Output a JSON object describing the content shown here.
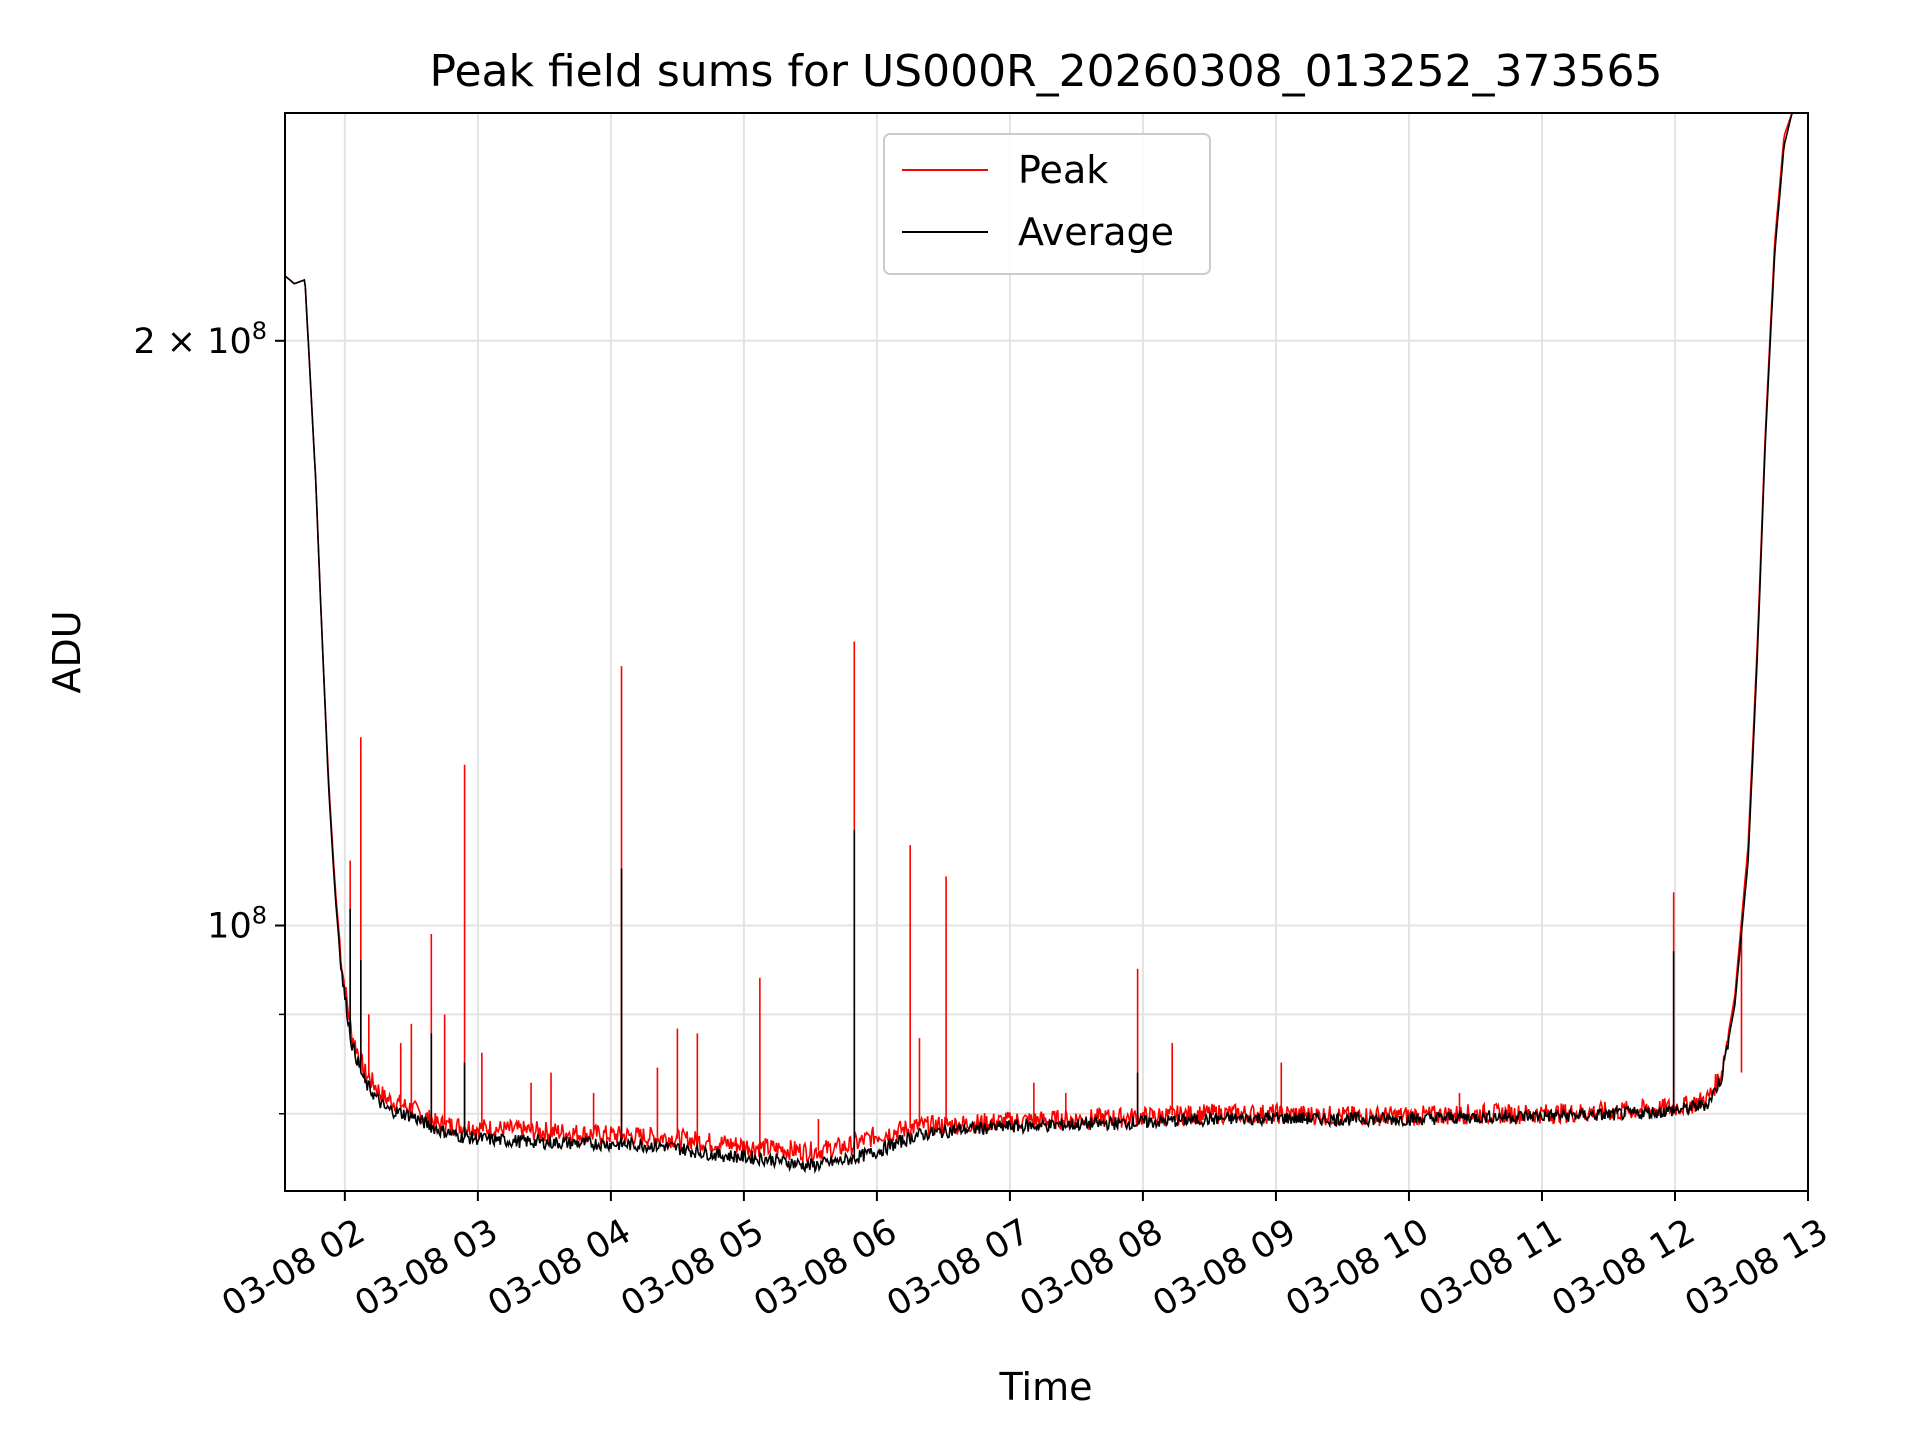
{
  "chart_data": {
    "type": "line",
    "title": "Peak field sums for US000R_20260308_013252_373565",
    "xlabel": "Time",
    "ylabel": "ADU",
    "yscale": "log",
    "ylim": [
      73000000,
      262000000
    ],
    "xlim": [
      1.55,
      13.0
    ],
    "grid": true,
    "legend_position": "top-center",
    "x_tick_values": [
      2,
      3,
      4,
      5,
      6,
      7,
      8,
      9,
      10,
      11,
      12,
      13
    ],
    "x_tick_labels": [
      "03-08 02",
      "03-08 03",
      "03-08 04",
      "03-08 05",
      "03-08 06",
      "03-08 07",
      "03-08 08",
      "03-08 09",
      "03-08 10",
      "03-08 11",
      "03-08 12",
      "03-08 13"
    ],
    "y_major_ticks": [
      {
        "value": 200000000,
        "mantissa": "2 × 10",
        "exponent": "8"
      },
      {
        "value": 100000000,
        "mantissa": "10",
        "exponent": "8"
      }
    ],
    "y_minor_ticks": [
      80000000,
      90000000
    ],
    "series": [
      {
        "name": "Peak",
        "color": "#ff0000",
        "x": [
          1.55,
          1.62,
          1.7,
          1.78,
          1.83,
          1.88,
          1.93,
          1.98,
          2.05,
          2.15,
          2.3,
          2.5,
          2.7,
          2.9,
          3.2,
          3.6,
          4.0,
          4.4,
          4.8,
          5.2,
          5.5,
          5.8,
          6.0,
          6.3,
          6.6,
          7.0,
          7.5,
          8.0,
          8.5,
          9.0,
          9.5,
          10.0,
          10.5,
          11.0,
          11.5,
          11.9,
          12.1,
          12.25,
          12.35,
          12.45,
          12.55,
          12.62,
          12.68,
          12.75,
          12.82,
          12.88,
          12.95,
          13.0
        ],
        "y": [
          216000000,
          214000000,
          215000000,
          170000000,
          140000000,
          118000000,
          104000000,
          95000000,
          88000000,
          84000000,
          81500000,
          80500000,
          79000000,
          78800000,
          78500000,
          78300000,
          78000000,
          77800000,
          77300000,
          76800000,
          76500000,
          77000000,
          78000000,
          78800000,
          79000000,
          79300000,
          79500000,
          79700000,
          80000000,
          80000000,
          79800000,
          79800000,
          80000000,
          80000000,
          80200000,
          80500000,
          80800000,
          81500000,
          84000000,
          92000000,
          110000000,
          140000000,
          180000000,
          225000000,
          255000000,
          262000000,
          262000000,
          262000000
        ],
        "spikes": [
          {
            "x": 2.04,
            "y": 108000000
          },
          {
            "x": 2.12,
            "y": 125000000
          },
          {
            "x": 2.18,
            "y": 90000000
          },
          {
            "x": 2.42,
            "y": 87000000
          },
          {
            "x": 2.5,
            "y": 89000000
          },
          {
            "x": 2.65,
            "y": 99000000
          },
          {
            "x": 2.75,
            "y": 90000000
          },
          {
            "x": 2.9,
            "y": 121000000
          },
          {
            "x": 3.03,
            "y": 86000000
          },
          {
            "x": 3.4,
            "y": 83000000
          },
          {
            "x": 3.55,
            "y": 84000000
          },
          {
            "x": 3.87,
            "y": 82000000
          },
          {
            "x": 4.08,
            "y": 136000000
          },
          {
            "x": 4.35,
            "y": 84500000
          },
          {
            "x": 4.5,
            "y": 88500000
          },
          {
            "x": 4.65,
            "y": 88000000
          },
          {
            "x": 5.12,
            "y": 94000000
          },
          {
            "x": 5.56,
            "y": 79500000
          },
          {
            "x": 5.83,
            "y": 140000000
          },
          {
            "x": 6.25,
            "y": 110000000
          },
          {
            "x": 6.32,
            "y": 87500000
          },
          {
            "x": 6.52,
            "y": 106000000
          },
          {
            "x": 7.18,
            "y": 83000000
          },
          {
            "x": 7.42,
            "y": 82000000
          },
          {
            "x": 7.96,
            "y": 95000000
          },
          {
            "x": 8.22,
            "y": 87000000
          },
          {
            "x": 9.04,
            "y": 85000000
          },
          {
            "x": 10.38,
            "y": 82000000
          },
          {
            "x": 11.99,
            "y": 104000000
          },
          {
            "x": 12.5,
            "y": 84000000
          }
        ]
      },
      {
        "name": "Average",
        "color": "#000000",
        "x": [
          1.55,
          1.62,
          1.7,
          1.78,
          1.83,
          1.88,
          1.93,
          1.98,
          2.05,
          2.15,
          2.3,
          2.5,
          2.7,
          2.9,
          3.2,
          3.6,
          4.0,
          4.4,
          4.8,
          5.2,
          5.5,
          5.8,
          6.0,
          6.3,
          6.6,
          7.0,
          7.5,
          8.0,
          8.5,
          9.0,
          9.5,
          10.0,
          10.5,
          11.0,
          11.5,
          11.9,
          12.1,
          12.25,
          12.35,
          12.45,
          12.55,
          12.62,
          12.68,
          12.75,
          12.82,
          12.88,
          12.95,
          13.0
        ],
        "y": [
          216000000,
          214000000,
          215000000,
          170000000,
          140000000,
          117000000,
          103000000,
          94000000,
          87000000,
          83000000,
          80500000,
          79800000,
          78500000,
          77800000,
          77500000,
          77300000,
          77200000,
          77000000,
          76200000,
          75800000,
          75200000,
          75800000,
          76500000,
          78000000,
          78500000,
          78800000,
          79000000,
          79200000,
          79500000,
          79600000,
          79500000,
          79500000,
          79700000,
          79800000,
          79900000,
          80200000,
          80500000,
          81000000,
          83500000,
          91000000,
          108000000,
          138000000,
          178000000,
          222000000,
          252000000,
          262000000,
          262000000,
          262000000
        ],
        "spikes": [
          {
            "x": 2.04,
            "y": 102000000
          },
          {
            "x": 2.12,
            "y": 96000000
          },
          {
            "x": 2.65,
            "y": 88000000
          },
          {
            "x": 2.9,
            "y": 85000000
          },
          {
            "x": 4.08,
            "y": 107000000
          },
          {
            "x": 5.83,
            "y": 112000000
          },
          {
            "x": 7.96,
            "y": 84000000
          },
          {
            "x": 11.99,
            "y": 97000000
          }
        ]
      }
    ]
  }
}
